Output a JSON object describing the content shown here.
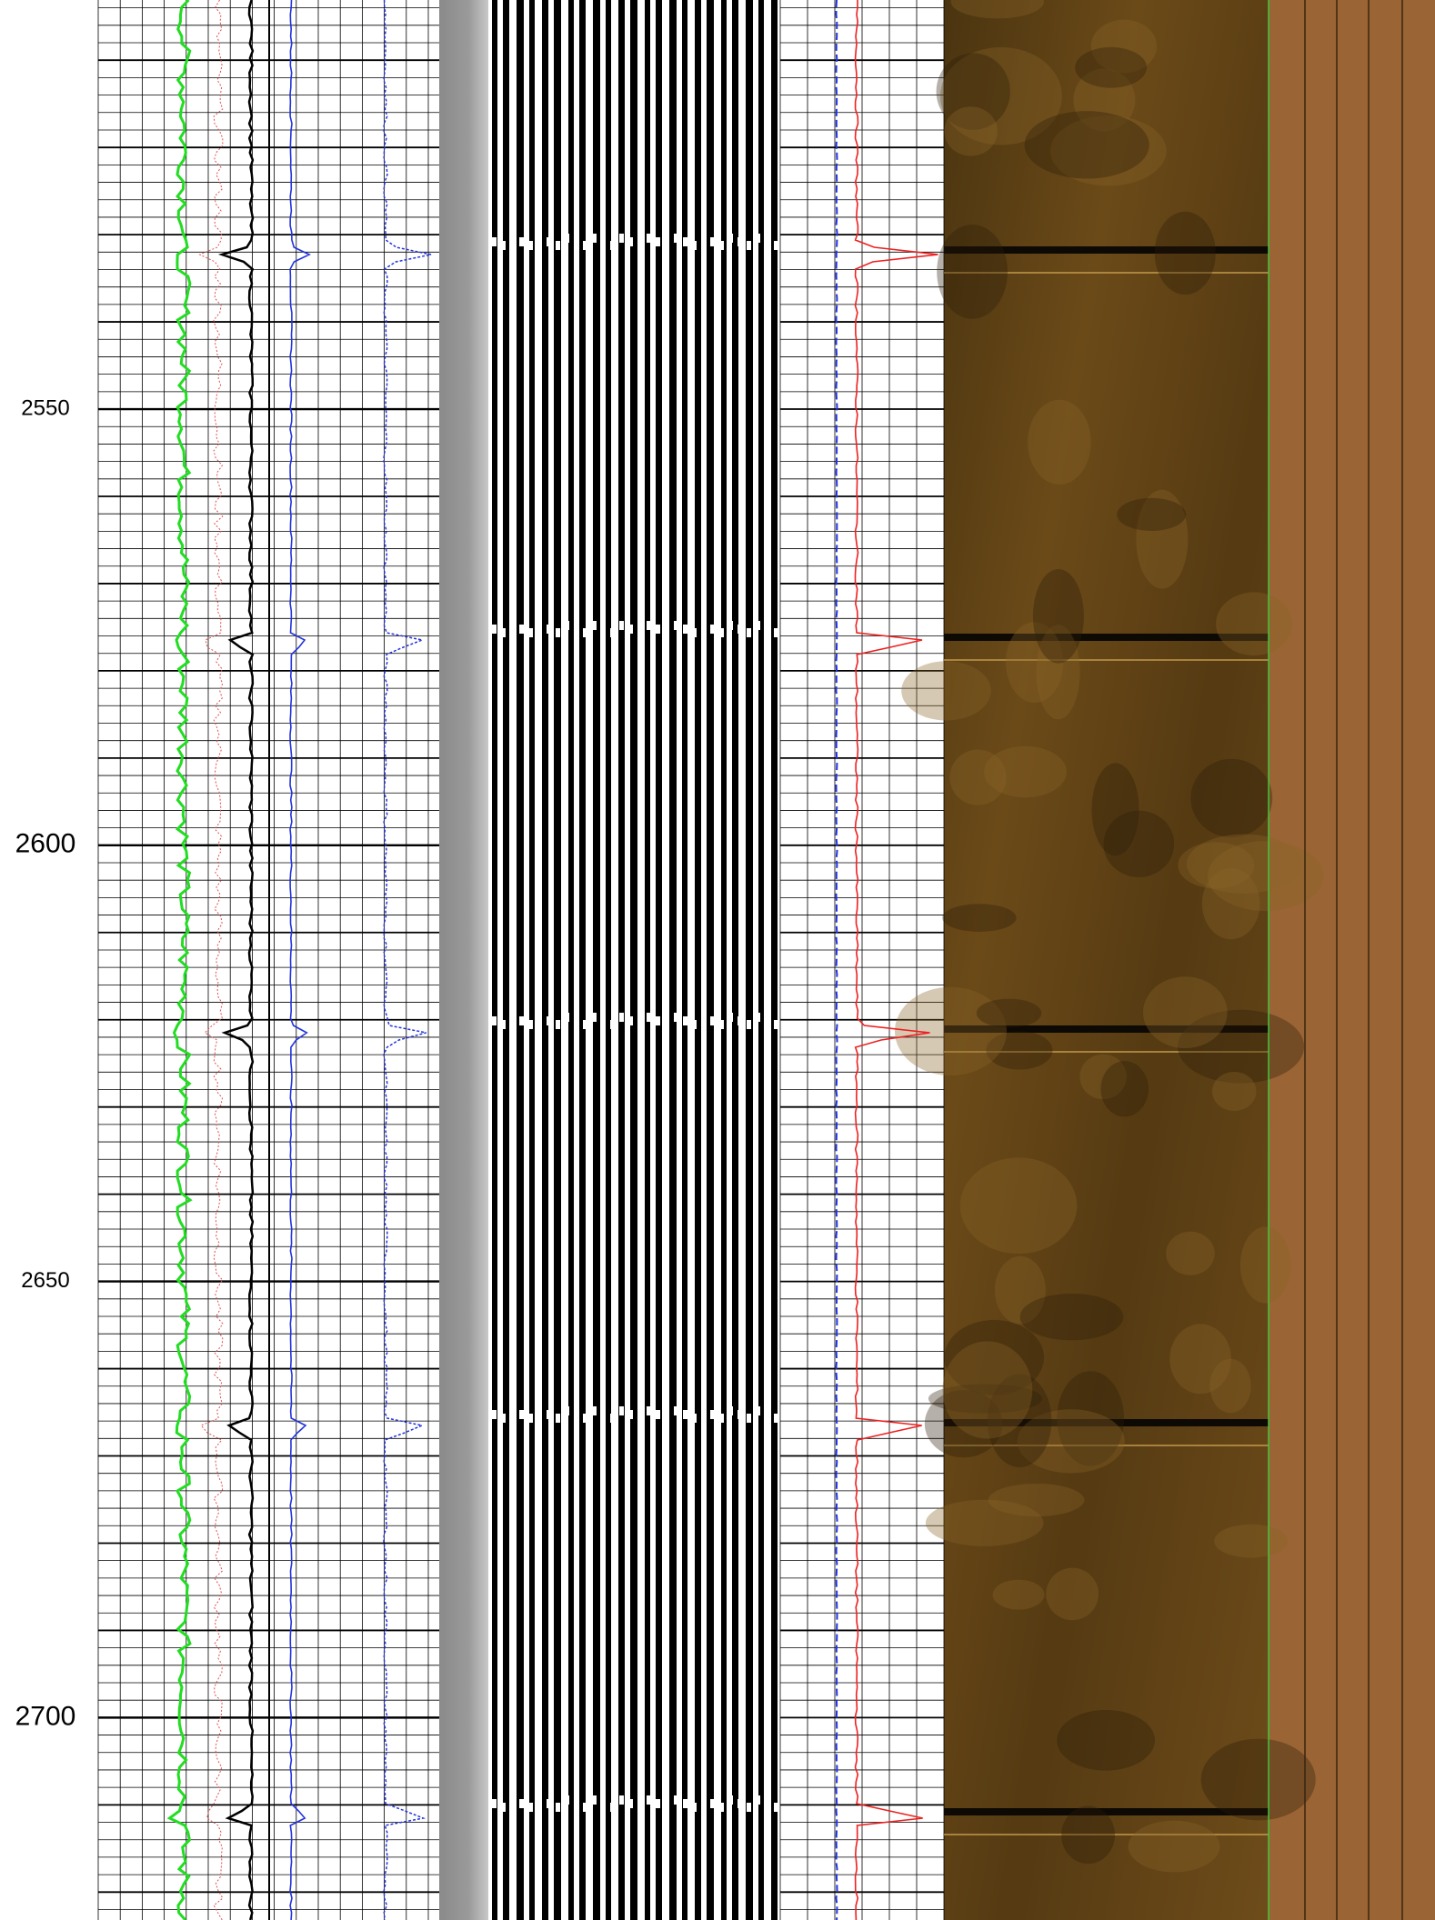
{
  "chart_data": {
    "type": "log",
    "ylim": [
      2503.1,
      2723.2
    ],
    "yticks": [
      2550,
      2600,
      2650,
      2700
    ]
  }
}
